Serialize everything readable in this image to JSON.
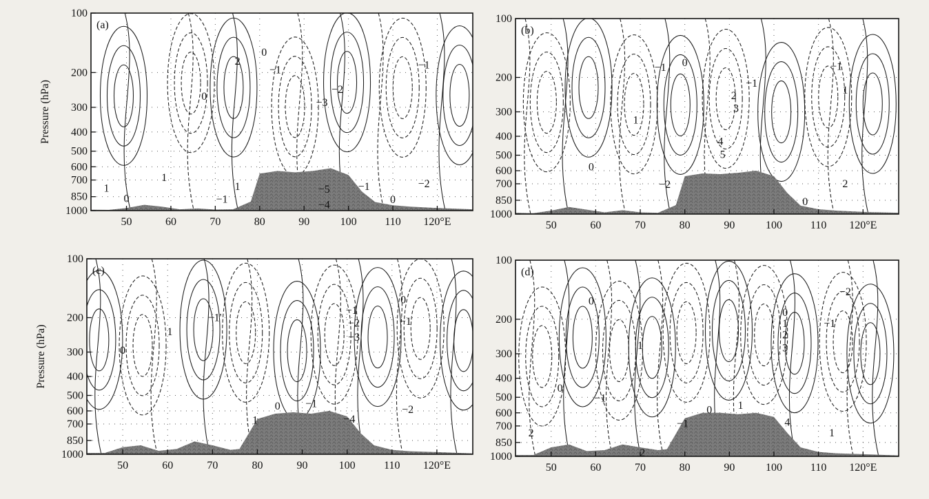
{
  "ylabel": "Pressure (hPa)",
  "x_ticks": [
    50,
    60,
    70,
    80,
    90,
    100,
    110,
    120
  ],
  "x_tick_labels": [
    "50",
    "60",
    "70",
    "80",
    "90",
    "100",
    "110",
    "120°E"
  ],
  "y_ticks": [
    100,
    200,
    300,
    400,
    500,
    600,
    700,
    850,
    1000
  ],
  "y_tick_labels": [
    "100",
    "200",
    "300",
    "400",
    "500",
    "600",
    "700",
    "850",
    "1000"
  ],
  "colors": {
    "terrain": "#7c7c7c",
    "terrain_dark": "#3e3e3e",
    "line": "#1a1a1a",
    "background": "#ffffff"
  },
  "chart_data": [
    {
      "type": "contour",
      "panel": "(a)",
      "xlim": [
        42,
        128
      ],
      "ylim": [
        1000,
        100
      ],
      "y_scale": "log",
      "grid": "dotted",
      "terrain": {
        "x": [
          42,
          46,
          50,
          54,
          58,
          62,
          66,
          70,
          74,
          78,
          80,
          84,
          88,
          92,
          96,
          100,
          103,
          106,
          110,
          114,
          120,
          128
        ],
        "p_top": [
          990,
          992,
          970,
          935,
          955,
          985,
          975,
          988,
          985,
          900,
          650,
          630,
          640,
          630,
          610,
          660,
          800,
          905,
          940,
          955,
          970,
          985
        ]
      },
      "contour_labels": [
        {
          "text": "2",
          "x": 75,
          "p": 175
        },
        {
          "text": "0",
          "x": 81,
          "p": 158
        },
        {
          "text": "−1",
          "x": 83.5,
          "p": 194
        },
        {
          "text": "−2",
          "x": 97.5,
          "p": 244
        },
        {
          "text": "−3",
          "x": 94,
          "p": 284
        },
        {
          "text": "0",
          "x": 67.5,
          "p": 264
        },
        {
          "text": "1",
          "x": 58.5,
          "p": 680
        },
        {
          "text": "1",
          "x": 45.5,
          "p": 770
        },
        {
          "text": "0",
          "x": 50,
          "p": 870
        },
        {
          "text": "−1",
          "x": 71.5,
          "p": 875
        },
        {
          "text": "1",
          "x": 75,
          "p": 755
        },
        {
          "text": "−5",
          "x": 94.5,
          "p": 780
        },
        {
          "text": "−4",
          "x": 94.5,
          "p": 935
        },
        {
          "text": "−1",
          "x": 103.5,
          "p": 755
        },
        {
          "text": "0",
          "x": 110,
          "p": 880
        },
        {
          "text": "−2",
          "x": 117,
          "p": 730
        },
        {
          "text": "−1",
          "x": 117,
          "p": 183
        }
      ]
    },
    {
      "type": "contour",
      "panel": "(b)",
      "xlim": [
        42,
        128
      ],
      "ylim": [
        1000,
        100
      ],
      "y_scale": "log",
      "grid": "dotted",
      "terrain": {
        "x": [
          42,
          46,
          50,
          54,
          58,
          62,
          66,
          70,
          74,
          78,
          80,
          84,
          88,
          92,
          96,
          100,
          103,
          106,
          110,
          114,
          120,
          128
        ],
        "p_top": [
          985,
          990,
          960,
          920,
          950,
          980,
          955,
          980,
          985,
          900,
          640,
          620,
          625,
          615,
          600,
          640,
          780,
          905,
          945,
          960,
          975,
          985
        ]
      },
      "contour_labels": [
        {
          "text": "−1",
          "x": 74.5,
          "p": 178
        },
        {
          "text": "0",
          "x": 80,
          "p": 168
        },
        {
          "text": "2",
          "x": 91,
          "p": 248
        },
        {
          "text": "−1",
          "x": 95,
          "p": 214
        },
        {
          "text": "3",
          "x": 91.5,
          "p": 288
        },
        {
          "text": "4",
          "x": 88,
          "p": 425
        },
        {
          "text": "5",
          "x": 88.5,
          "p": 495
        },
        {
          "text": "1",
          "x": 69,
          "p": 330
        },
        {
          "text": "0",
          "x": 59,
          "p": 575
        },
        {
          "text": "−2",
          "x": 75.5,
          "p": 705
        },
        {
          "text": "0",
          "x": 107,
          "p": 865
        },
        {
          "text": "2",
          "x": 116,
          "p": 700
        },
        {
          "text": "1",
          "x": 116,
          "p": 232
        },
        {
          "text": "−1",
          "x": 114,
          "p": 176
        }
      ]
    },
    {
      "type": "contour",
      "panel": "(c)",
      "xlim": [
        42,
        128
      ],
      "ylim": [
        1000,
        100
      ],
      "y_scale": "log",
      "grid": "dotted",
      "terrain": {
        "x": [
          42,
          46,
          50,
          54,
          58,
          62,
          66,
          70,
          74,
          76,
          80,
          84,
          88,
          92,
          96,
          100,
          103,
          106,
          110,
          114,
          120,
          128
        ],
        "p_top": [
          985,
          985,
          920,
          900,
          960,
          940,
          860,
          900,
          950,
          940,
          660,
          620,
          610,
          620,
          600,
          640,
          780,
          900,
          950,
          965,
          975,
          990
        ]
      },
      "contour_labels": [
        {
          "text": "1",
          "x": 60.5,
          "p": 236
        },
        {
          "text": "0",
          "x": 50,
          "p": 294
        },
        {
          "text": "−1'",
          "x": 70.5,
          "p": 200
        },
        {
          "text": "−1",
          "x": 101,
          "p": 184
        },
        {
          "text": "−2",
          "x": 101.5,
          "p": 213
        },
        {
          "text": "−3",
          "x": 101.5,
          "p": 252
        },
        {
          "text": "0",
          "x": 112.5,
          "p": 162
        },
        {
          "text": "−1",
          "x": 113,
          "p": 209
        },
        {
          "text": "−2",
          "x": 113.5,
          "p": 590
        },
        {
          "text": "0",
          "x": 84.5,
          "p": 568
        },
        {
          "text": "−1",
          "x": 92,
          "p": 550
        },
        {
          "text": "1",
          "x": 79.5,
          "p": 670
        },
        {
          "text": "−4",
          "x": 100.5,
          "p": 660
        }
      ]
    },
    {
      "type": "contour",
      "panel": "(d)",
      "xlim": [
        42,
        128
      ],
      "ylim": [
        1000,
        100
      ],
      "y_scale": "log",
      "grid": "dotted",
      "terrain": {
        "x": [
          42,
          46,
          50,
          54,
          58,
          62,
          66,
          70,
          74,
          76,
          80,
          84,
          88,
          92,
          96,
          100,
          103,
          106,
          110,
          114,
          120,
          128
        ],
        "p_top": [
          985,
          985,
          900,
          870,
          940,
          930,
          870,
          900,
          930,
          920,
          640,
          600,
          600,
          610,
          600,
          630,
          760,
          900,
          950,
          965,
          975,
          990
        ]
      },
      "contour_labels": [
        {
          "text": "0",
          "x": 59,
          "p": 162
        },
        {
          "text": "0",
          "x": 52,
          "p": 450
        },
        {
          "text": "−1",
          "x": 61,
          "p": 505
        },
        {
          "text": "1",
          "x": 70,
          "p": 272
        },
        {
          "text": "2",
          "x": 45.5,
          "p": 760
        },
        {
          "text": "2",
          "x": 70.5,
          "p": 960
        },
        {
          "text": "−1",
          "x": 79.5,
          "p": 680
        },
        {
          "text": "0",
          "x": 85.5,
          "p": 580
        },
        {
          "text": "1",
          "x": 92.5,
          "p": 550
        },
        {
          "text": "4",
          "x": 103,
          "p": 670
        },
        {
          "text": "1",
          "x": 113,
          "p": 760
        },
        {
          "text": "0",
          "x": 102.5,
          "p": 185
        },
        {
          "text": "1",
          "x": 102.5,
          "p": 210
        },
        {
          "text": "2",
          "x": 102.5,
          "p": 240
        },
        {
          "text": "3",
          "x": 102.5,
          "p": 280
        },
        {
          "text": "−1",
          "x": 112.5,
          "p": 210
        },
        {
          "text": "−2",
          "x": 116,
          "p": 145
        }
      ]
    }
  ]
}
